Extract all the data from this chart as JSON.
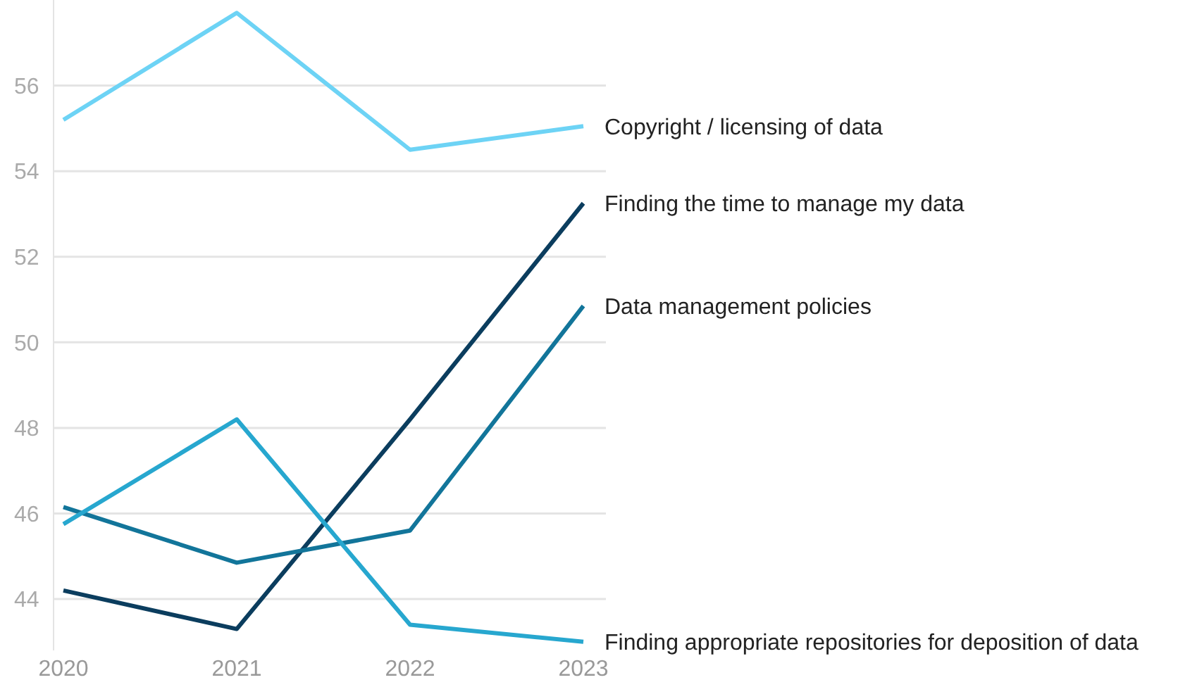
{
  "chart_data": {
    "type": "line",
    "categories": [
      "2020",
      "2021",
      "2022",
      "2023"
    ],
    "ylim": [
      42.8,
      58
    ],
    "yticks": [
      44,
      46,
      48,
      50,
      52,
      54,
      56
    ],
    "grid": "y",
    "marker": "none",
    "line_style": "solid",
    "series": [
      {
        "name": "Copyright / licensing of data",
        "color": "#6dd3f5",
        "values": [
          55.2,
          57.7,
          54.5,
          55.05
        ]
      },
      {
        "name": "Finding the time to manage my data",
        "color": "#0b3d5e",
        "values": [
          44.2,
          43.3,
          48.2,
          53.25
        ]
      },
      {
        "name": "Data management policies",
        "color": "#12759a",
        "values": [
          46.15,
          44.85,
          45.6,
          50.85
        ]
      },
      {
        "name": "Finding appropriate repositories for deposition of data",
        "color": "#27a7cf",
        "values": [
          45.75,
          48.2,
          43.4,
          43.0
        ]
      }
    ]
  }
}
